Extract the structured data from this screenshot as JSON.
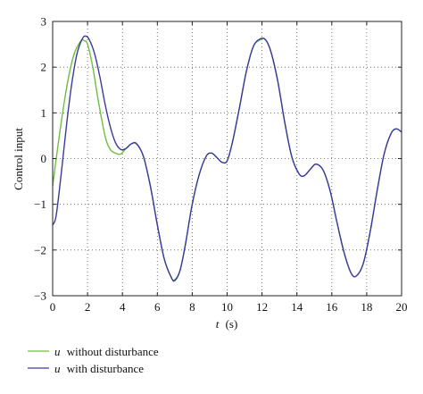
{
  "chart_data": {
    "type": "line",
    "title": "",
    "xlabel_var": "t",
    "xlabel_unit": "(s)",
    "ylabel": "Control input",
    "xlim": [
      0,
      20
    ],
    "ylim": [
      -3,
      3
    ],
    "xticks": [
      0,
      2,
      4,
      6,
      8,
      10,
      12,
      14,
      16,
      18,
      20
    ],
    "yticks": [
      -3,
      -2,
      -1,
      0,
      1,
      2,
      3
    ],
    "grid": "dotted",
    "legend_position": "bottom-left, below plot",
    "series": [
      {
        "name_var": "u",
        "name_rest": "without disturbance",
        "color": "#6dbf3f",
        "x": [
          0,
          0.4,
          0.8,
          1.2,
          1.6,
          1.8,
          2.0,
          2.3,
          2.6,
          3.0,
          3.3,
          3.6,
          3.9,
          4.2,
          4.5,
          4.8,
          5.2,
          5.6,
          6.0,
          6.4,
          6.8,
          7.0,
          7.3,
          7.6,
          8.0,
          8.4,
          8.8,
          9.1,
          9.4,
          9.7,
          10.0,
          10.3,
          10.7,
          11.1,
          11.5,
          11.9,
          12.2,
          12.5,
          12.9,
          13.3,
          13.7,
          14.1,
          14.4,
          14.8,
          15.1,
          15.5,
          15.9,
          16.3,
          16.7,
          17.1,
          17.4,
          17.8,
          18.2,
          18.6,
          19.0,
          19.4,
          19.7,
          20.0
        ],
        "values": [
          -0.6,
          0.55,
          1.55,
          2.25,
          2.57,
          2.58,
          2.5,
          2.0,
          1.3,
          0.5,
          0.2,
          0.12,
          0.1,
          0.22,
          0.32,
          0.32,
          0.05,
          -0.6,
          -1.45,
          -2.2,
          -2.6,
          -2.65,
          -2.45,
          -1.9,
          -1.0,
          -0.35,
          0.05,
          0.12,
          0.03,
          -0.08,
          -0.05,
          0.35,
          1.1,
          1.9,
          2.45,
          2.6,
          2.6,
          2.35,
          1.7,
          0.8,
          0.05,
          -0.32,
          -0.38,
          -0.22,
          -0.12,
          -0.25,
          -0.7,
          -1.4,
          -2.05,
          -2.5,
          -2.57,
          -2.3,
          -1.6,
          -0.7,
          0.1,
          0.55,
          0.65,
          0.58
        ]
      },
      {
        "name_var": "u",
        "name_rest": "with disturbance",
        "color": "#3a3aa0",
        "x": [
          0,
          0.2,
          0.5,
          0.8,
          1.1,
          1.4,
          1.7,
          1.9,
          2.1,
          2.4,
          2.7,
          3.0,
          3.3,
          3.6,
          3.9,
          4.2,
          4.5,
          4.8,
          5.2,
          5.6,
          6.0,
          6.4,
          6.8,
          7.0,
          7.3,
          7.6,
          8.0,
          8.4,
          8.8,
          9.1,
          9.4,
          9.7,
          10.0,
          10.3,
          10.7,
          11.1,
          11.5,
          11.9,
          12.2,
          12.5,
          12.9,
          13.3,
          13.7,
          14.1,
          14.4,
          14.8,
          15.1,
          15.5,
          15.9,
          16.3,
          16.7,
          17.1,
          17.4,
          17.8,
          18.2,
          18.6,
          19.0,
          19.4,
          19.7,
          20.0
        ],
        "values": [
          -1.45,
          -1.25,
          -0.3,
          0.75,
          1.65,
          2.3,
          2.62,
          2.68,
          2.6,
          2.3,
          1.8,
          1.2,
          0.7,
          0.35,
          0.2,
          0.22,
          0.32,
          0.33,
          0.05,
          -0.6,
          -1.45,
          -2.2,
          -2.6,
          -2.67,
          -2.45,
          -1.9,
          -1.0,
          -0.35,
          0.05,
          0.12,
          0.03,
          -0.08,
          -0.05,
          0.35,
          1.1,
          1.9,
          2.45,
          2.62,
          2.6,
          2.35,
          1.7,
          0.8,
          0.05,
          -0.32,
          -0.38,
          -0.22,
          -0.12,
          -0.25,
          -0.7,
          -1.4,
          -2.05,
          -2.5,
          -2.57,
          -2.3,
          -1.6,
          -0.7,
          0.1,
          0.55,
          0.65,
          0.58
        ]
      }
    ]
  }
}
